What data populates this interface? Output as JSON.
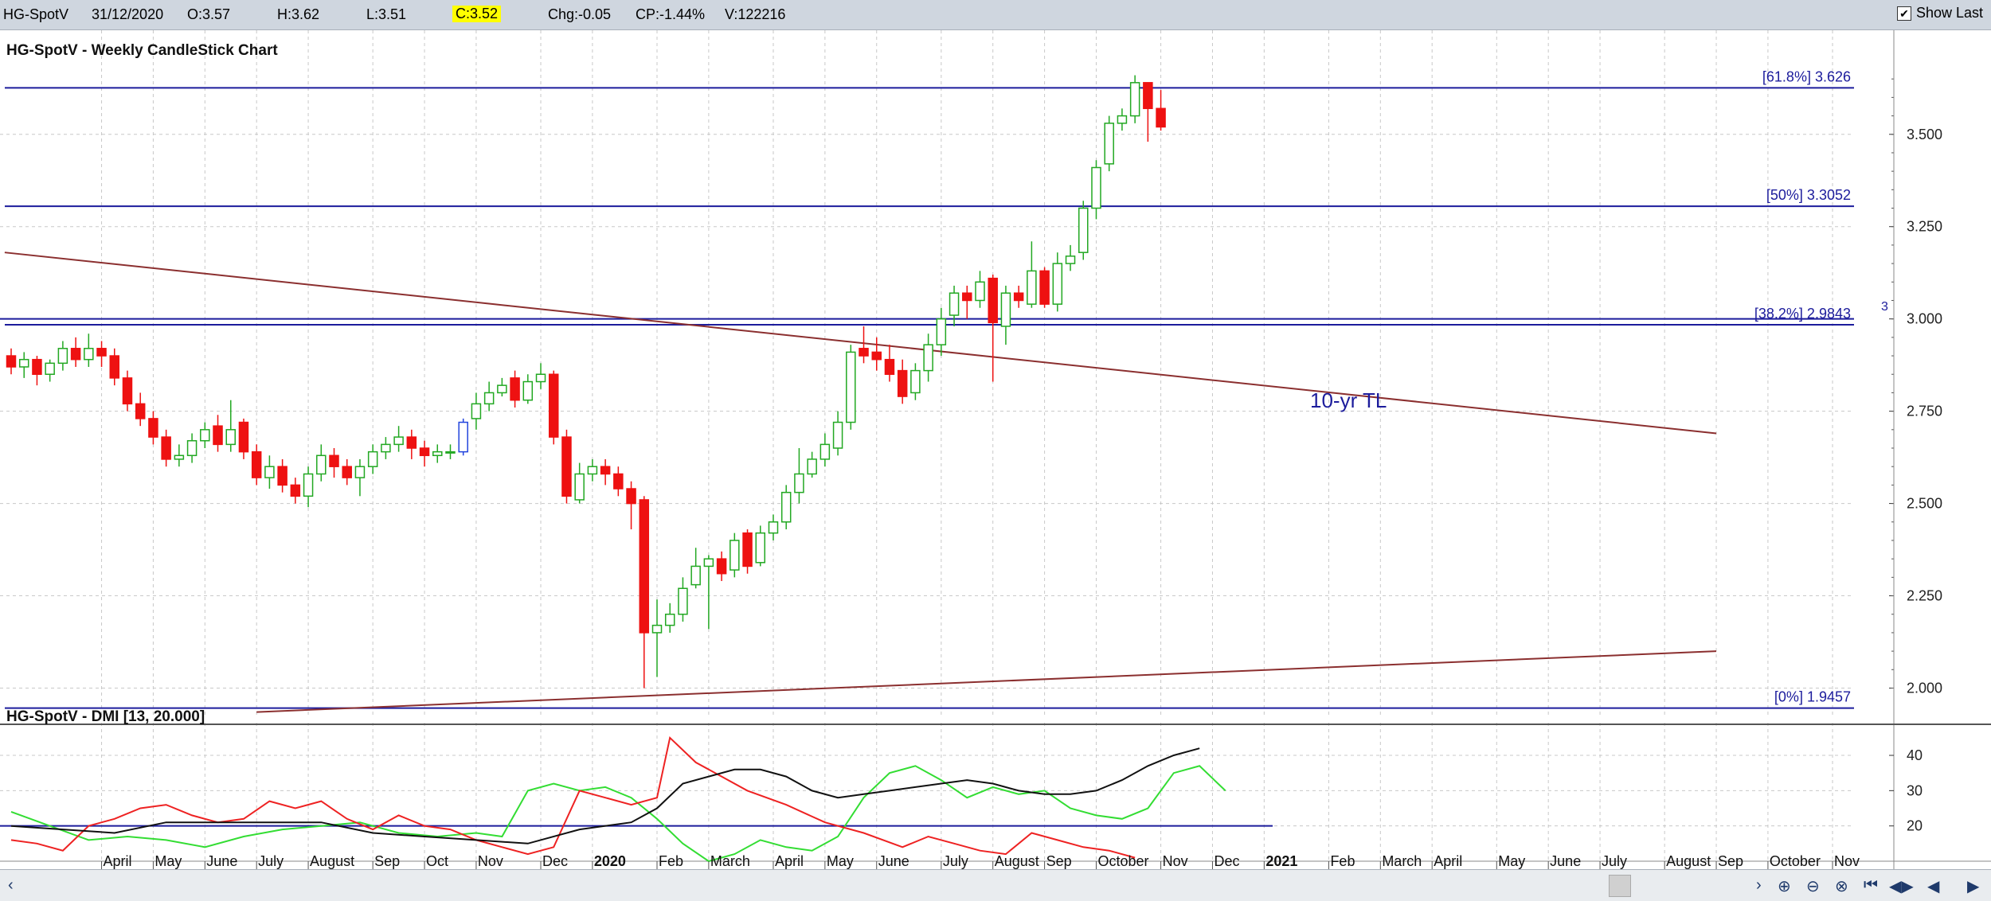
{
  "toolbar": {
    "symbol": "HG-SpotV",
    "date": "31/12/2020",
    "open": "O:3.57",
    "high": "H:3.62",
    "low": "L:3.51",
    "close": "C:3.52",
    "change": "Chg:-0.05",
    "change_pct": "CP:-1.44%",
    "volume": "V:122216",
    "show_last_label": "Show Last",
    "show_last_checked": true
  },
  "colors": {
    "up": "#22a822",
    "down": "#ee1111",
    "fib": "#1c1c9c",
    "trendline": "#8b2f2f",
    "plus_di": "#33dd33",
    "minus_di": "#ee2222",
    "adx": "#111111"
  },
  "chart_data": [
    {
      "type": "candlestick",
      "title": "HG-SpotV - Weekly CandleStick Chart",
      "ylim": [
        1.945,
        3.7
      ],
      "y_ticks": [
        "2.000",
        "2.250",
        "2.500",
        "2.750",
        "3.000",
        "3.250",
        "3.500"
      ],
      "x_ticks": [
        {
          "label": "April",
          "week": 7
        },
        {
          "label": "May",
          "week": 11
        },
        {
          "label": "June",
          "week": 15
        },
        {
          "label": "July",
          "week": 19
        },
        {
          "label": "August",
          "week": 23
        },
        {
          "label": "Sep",
          "week": 28
        },
        {
          "label": "Oct",
          "week": 32
        },
        {
          "label": "Nov",
          "week": 36
        },
        {
          "label": "Dec",
          "week": 41
        },
        {
          "label": "2020",
          "week": 45
        },
        {
          "label": "Feb",
          "week": 50
        },
        {
          "label": "March",
          "week": 54
        },
        {
          "label": "April",
          "week": 59
        },
        {
          "label": "May",
          "week": 63
        },
        {
          "label": "June",
          "week": 67
        },
        {
          "label": "July",
          "week": 72
        },
        {
          "label": "August",
          "week": 76
        },
        {
          "label": "Sep",
          "week": 80
        },
        {
          "label": "October",
          "week": 84
        },
        {
          "label": "Nov",
          "week": 89
        },
        {
          "label": "Dec",
          "week": 93
        },
        {
          "label": "2021",
          "week": 97
        },
        {
          "label": "Feb",
          "week": 102
        },
        {
          "label": "March",
          "week": 106
        },
        {
          "label": "April",
          "week": 110
        },
        {
          "label": "May",
          "week": 115
        },
        {
          "label": "June",
          "week": 119
        },
        {
          "label": "July",
          "week": 123
        },
        {
          "label": "August",
          "week": 128
        },
        {
          "label": "Sep",
          "week": 132
        },
        {
          "label": "October",
          "week": 136
        },
        {
          "label": "Nov",
          "week": 141
        }
      ],
      "candles": [
        [
          2.9,
          2.87,
          2.92,
          2.85
        ],
        [
          2.87,
          2.89,
          2.91,
          2.84
        ],
        [
          2.89,
          2.85,
          2.9,
          2.82
        ],
        [
          2.85,
          2.88,
          2.89,
          2.83
        ],
        [
          2.88,
          2.92,
          2.94,
          2.86
        ],
        [
          2.92,
          2.89,
          2.95,
          2.87
        ],
        [
          2.89,
          2.92,
          2.96,
          2.87
        ],
        [
          2.92,
          2.9,
          2.94,
          2.87
        ],
        [
          2.9,
          2.84,
          2.92,
          2.82
        ],
        [
          2.84,
          2.77,
          2.86,
          2.75
        ],
        [
          2.77,
          2.73,
          2.8,
          2.71
        ],
        [
          2.73,
          2.68,
          2.75,
          2.66
        ],
        [
          2.68,
          2.62,
          2.7,
          2.6
        ],
        [
          2.62,
          2.63,
          2.66,
          2.6
        ],
        [
          2.63,
          2.67,
          2.69,
          2.61
        ],
        [
          2.67,
          2.7,
          2.72,
          2.65
        ],
        [
          2.71,
          2.66,
          2.74,
          2.64
        ],
        [
          2.66,
          2.7,
          2.78,
          2.64
        ],
        [
          2.72,
          2.64,
          2.73,
          2.62
        ],
        [
          2.64,
          2.57,
          2.66,
          2.55
        ],
        [
          2.57,
          2.6,
          2.63,
          2.54
        ],
        [
          2.6,
          2.55,
          2.62,
          2.53
        ],
        [
          2.55,
          2.52,
          2.57,
          2.5
        ],
        [
          2.52,
          2.58,
          2.6,
          2.49
        ],
        [
          2.58,
          2.63,
          2.66,
          2.56
        ],
        [
          2.63,
          2.6,
          2.65,
          2.57
        ],
        [
          2.6,
          2.57,
          2.62,
          2.55
        ],
        [
          2.57,
          2.6,
          2.62,
          2.52
        ],
        [
          2.6,
          2.64,
          2.66,
          2.58
        ],
        [
          2.64,
          2.66,
          2.68,
          2.62
        ],
        [
          2.66,
          2.68,
          2.71,
          2.64
        ],
        [
          2.68,
          2.65,
          2.7,
          2.62
        ],
        [
          2.65,
          2.63,
          2.67,
          2.6
        ],
        [
          2.63,
          2.64,
          2.66,
          2.61
        ],
        [
          2.64,
          2.64,
          2.66,
          2.62
        ],
        [
          2.64,
          2.72,
          2.73,
          2.63
        ],
        [
          2.73,
          2.77,
          2.8,
          2.7
        ],
        [
          2.77,
          2.8,
          2.83,
          2.75
        ],
        [
          2.8,
          2.82,
          2.84,
          2.79
        ],
        [
          2.84,
          2.78,
          2.86,
          2.76
        ],
        [
          2.78,
          2.83,
          2.85,
          2.77
        ],
        [
          2.83,
          2.85,
          2.88,
          2.81
        ],
        [
          2.85,
          2.68,
          2.86,
          2.66
        ],
        [
          2.68,
          2.52,
          2.7,
          2.5
        ],
        [
          2.51,
          2.58,
          2.61,
          2.5
        ],
        [
          2.58,
          2.6,
          2.62,
          2.56
        ],
        [
          2.6,
          2.58,
          2.62,
          2.55
        ],
        [
          2.58,
          2.54,
          2.6,
          2.52
        ],
        [
          2.54,
          2.5,
          2.56,
          2.43
        ],
        [
          2.51,
          2.15,
          2.52,
          2.0
        ],
        [
          2.15,
          2.17,
          2.24,
          2.03
        ],
        [
          2.17,
          2.2,
          2.23,
          2.15
        ],
        [
          2.2,
          2.27,
          2.3,
          2.18
        ],
        [
          2.28,
          2.33,
          2.38,
          2.27
        ],
        [
          2.33,
          2.35,
          2.36,
          2.16
        ],
        [
          2.35,
          2.31,
          2.37,
          2.29
        ],
        [
          2.32,
          2.4,
          2.42,
          2.3
        ],
        [
          2.42,
          2.33,
          2.43,
          2.31
        ],
        [
          2.34,
          2.42,
          2.44,
          2.33
        ],
        [
          2.42,
          2.45,
          2.47,
          2.4
        ],
        [
          2.45,
          2.53,
          2.55,
          2.43
        ],
        [
          2.53,
          2.58,
          2.65,
          2.5
        ],
        [
          2.58,
          2.62,
          2.64,
          2.57
        ],
        [
          2.62,
          2.66,
          2.69,
          2.6
        ],
        [
          2.65,
          2.72,
          2.75,
          2.63
        ],
        [
          2.72,
          2.91,
          2.93,
          2.7
        ],
        [
          2.92,
          2.9,
          2.98,
          2.88
        ],
        [
          2.91,
          2.89,
          2.95,
          2.86
        ],
        [
          2.89,
          2.85,
          2.93,
          2.83
        ],
        [
          2.86,
          2.79,
          2.89,
          2.77
        ],
        [
          2.8,
          2.86,
          2.88,
          2.78
        ],
        [
          2.86,
          2.93,
          2.96,
          2.83
        ],
        [
          2.93,
          3.0,
          3.03,
          2.9
        ],
        [
          3.01,
          3.07,
          3.09,
          2.98
        ],
        [
          3.07,
          3.05,
          3.09,
          3.0
        ],
        [
          3.05,
          3.1,
          3.13,
          3.03
        ],
        [
          3.11,
          2.99,
          3.12,
          2.83
        ],
        [
          2.98,
          3.07,
          3.09,
          2.93
        ],
        [
          3.07,
          3.05,
          3.09,
          3.03
        ],
        [
          3.04,
          3.13,
          3.21,
          3.03
        ],
        [
          3.13,
          3.04,
          3.14,
          3.03
        ],
        [
          3.04,
          3.15,
          3.18,
          3.02
        ],
        [
          3.15,
          3.17,
          3.2,
          3.13
        ],
        [
          3.18,
          3.3,
          3.32,
          3.16
        ],
        [
          3.3,
          3.41,
          3.43,
          3.27
        ],
        [
          3.42,
          3.53,
          3.55,
          3.4
        ],
        [
          3.53,
          3.55,
          3.57,
          3.51
        ],
        [
          3.55,
          3.64,
          3.66,
          3.53
        ],
        [
          3.64,
          3.57,
          3.64,
          3.48
        ],
        [
          3.57,
          3.52,
          3.62,
          3.51
        ]
      ],
      "bar_colors": {
        "35": "#2244dd"
      },
      "fib_levels": [
        {
          "label": "[61.8%] 3.626",
          "value": 3.626
        },
        {
          "label": "[50%] 3.3052",
          "value": 3.3052
        },
        {
          "label": "[38.2%] 2.9843",
          "value": 2.9843
        },
        {
          "label": "[0%] 1.9457",
          "value": 1.9457
        }
      ],
      "extra_level": 3.0,
      "trendlines": [
        {
          "from": [
            -0.5,
            3.18
          ],
          "to": [
            132,
            2.69
          ]
        },
        {
          "from": [
            19,
            1.935
          ],
          "to": [
            132,
            2.1
          ]
        }
      ],
      "annotations": [
        {
          "text": "10-yr TL"
        },
        {
          "text": "3"
        }
      ]
    },
    {
      "type": "line",
      "title": "HG-SpotV - DMI [13, 20.000]",
      "ylim": [
        10,
        47
      ],
      "y_ticks": [
        "20",
        "30",
        "40"
      ],
      "threshold": 20,
      "series": [
        {
          "color": "#33dd33",
          "points": [
            [
              0,
              24
            ],
            [
              3,
              20
            ],
            [
              6,
              16
            ],
            [
              9,
              17
            ],
            [
              12,
              16
            ],
            [
              15,
              14
            ],
            [
              18,
              17
            ],
            [
              21,
              19
            ],
            [
              24,
              20
            ],
            [
              27,
              21
            ],
            [
              30,
              18
            ],
            [
              33,
              17
            ],
            [
              36,
              18
            ],
            [
              38,
              17
            ],
            [
              40,
              30
            ],
            [
              42,
              32
            ],
            [
              44,
              30
            ],
            [
              46,
              31
            ],
            [
              48,
              28
            ],
            [
              50,
              22
            ],
            [
              52,
              15
            ],
            [
              54,
              10
            ],
            [
              56,
              12
            ],
            [
              58,
              16
            ],
            [
              60,
              14
            ],
            [
              62,
              13
            ],
            [
              64,
              17
            ],
            [
              66,
              28
            ],
            [
              68,
              35
            ],
            [
              70,
              37
            ],
            [
              72,
              33
            ],
            [
              74,
              28
            ],
            [
              76,
              31
            ],
            [
              78,
              29
            ],
            [
              80,
              30
            ],
            [
              82,
              25
            ],
            [
              84,
              23
            ],
            [
              86,
              22
            ],
            [
              88,
              25
            ],
            [
              90,
              35
            ],
            [
              92,
              37
            ],
            [
              94,
              30
            ]
          ]
        },
        {
          "color": "#ee2222",
          "points": [
            [
              0,
              16
            ],
            [
              2,
              15
            ],
            [
              4,
              13
            ],
            [
              6,
              20
            ],
            [
              8,
              22
            ],
            [
              10,
              25
            ],
            [
              12,
              26
            ],
            [
              14,
              23
            ],
            [
              16,
              21
            ],
            [
              18,
              22
            ],
            [
              20,
              27
            ],
            [
              22,
              25
            ],
            [
              24,
              27
            ],
            [
              26,
              22
            ],
            [
              28,
              19
            ],
            [
              30,
              23
            ],
            [
              32,
              20
            ],
            [
              34,
              19
            ],
            [
              36,
              16
            ],
            [
              38,
              14
            ],
            [
              40,
              12
            ],
            [
              42,
              14
            ],
            [
              44,
              30
            ],
            [
              46,
              28
            ],
            [
              48,
              26
            ],
            [
              50,
              28
            ],
            [
              51,
              45
            ],
            [
              53,
              38
            ],
            [
              55,
              34
            ],
            [
              57,
              30
            ],
            [
              60,
              26
            ],
            [
              63,
              21
            ],
            [
              66,
              18
            ],
            [
              69,
              14
            ],
            [
              71,
              17
            ],
            [
              73,
              15
            ],
            [
              75,
              13
            ],
            [
              77,
              12
            ],
            [
              79,
              18
            ],
            [
              81,
              16
            ],
            [
              83,
              14
            ],
            [
              85,
              13
            ],
            [
              87,
              11
            ]
          ]
        },
        {
          "color": "#111111",
          "points": [
            [
              0,
              20
            ],
            [
              4,
              19
            ],
            [
              8,
              18
            ],
            [
              12,
              21
            ],
            [
              16,
              21
            ],
            [
              20,
              21
            ],
            [
              24,
              21
            ],
            [
              28,
              18
            ],
            [
              32,
              17
            ],
            [
              36,
              16
            ],
            [
              40,
              15
            ],
            [
              44,
              19
            ],
            [
              48,
              21
            ],
            [
              50,
              25
            ],
            [
              52,
              32
            ],
            [
              54,
              34
            ],
            [
              56,
              36
            ],
            [
              58,
              36
            ],
            [
              60,
              34
            ],
            [
              62,
              30
            ],
            [
              64,
              28
            ],
            [
              66,
              29
            ],
            [
              68,
              30
            ],
            [
              70,
              31
            ],
            [
              72,
              32
            ],
            [
              74,
              33
            ],
            [
              76,
              32
            ],
            [
              78,
              30
            ],
            [
              80,
              29
            ],
            [
              82,
              29
            ],
            [
              84,
              30
            ],
            [
              86,
              33
            ],
            [
              88,
              37
            ],
            [
              90,
              40
            ],
            [
              92,
              42
            ]
          ]
        }
      ]
    }
  ]
}
